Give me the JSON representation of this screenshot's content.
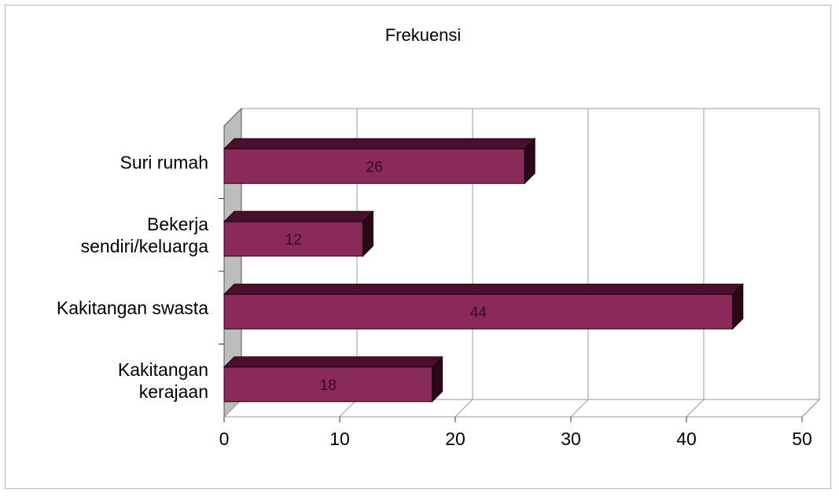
{
  "chart_data": {
    "type": "bar",
    "orientation": "horizontal",
    "three_d": true,
    "title": "Frekuensi",
    "categories": [
      "Suri rumah",
      "Bekerja sendiri/keluarga",
      "Kakitangan swasta",
      "Kakitangan kerajaan"
    ],
    "category_lines": [
      [
        "Suri rumah"
      ],
      [
        "Bekerja",
        "sendiri/keluarga"
      ],
      [
        "Kakitangan swasta"
      ],
      [
        "Kakitangan",
        "kerajaan"
      ]
    ],
    "series": [
      {
        "values": [
          26,
          12,
          44,
          18
        ]
      }
    ],
    "xlim": [
      0,
      50
    ],
    "ticks": [
      0,
      10,
      20,
      30,
      40,
      50
    ],
    "grid": true,
    "data_labels": true,
    "bar_color": "#8a2a5a",
    "bar_top_color": "#4a0f2c",
    "bar_side_color": "#2a0618",
    "wall_color": "#bdbdbd",
    "grid_color": "#9a9a9a"
  }
}
